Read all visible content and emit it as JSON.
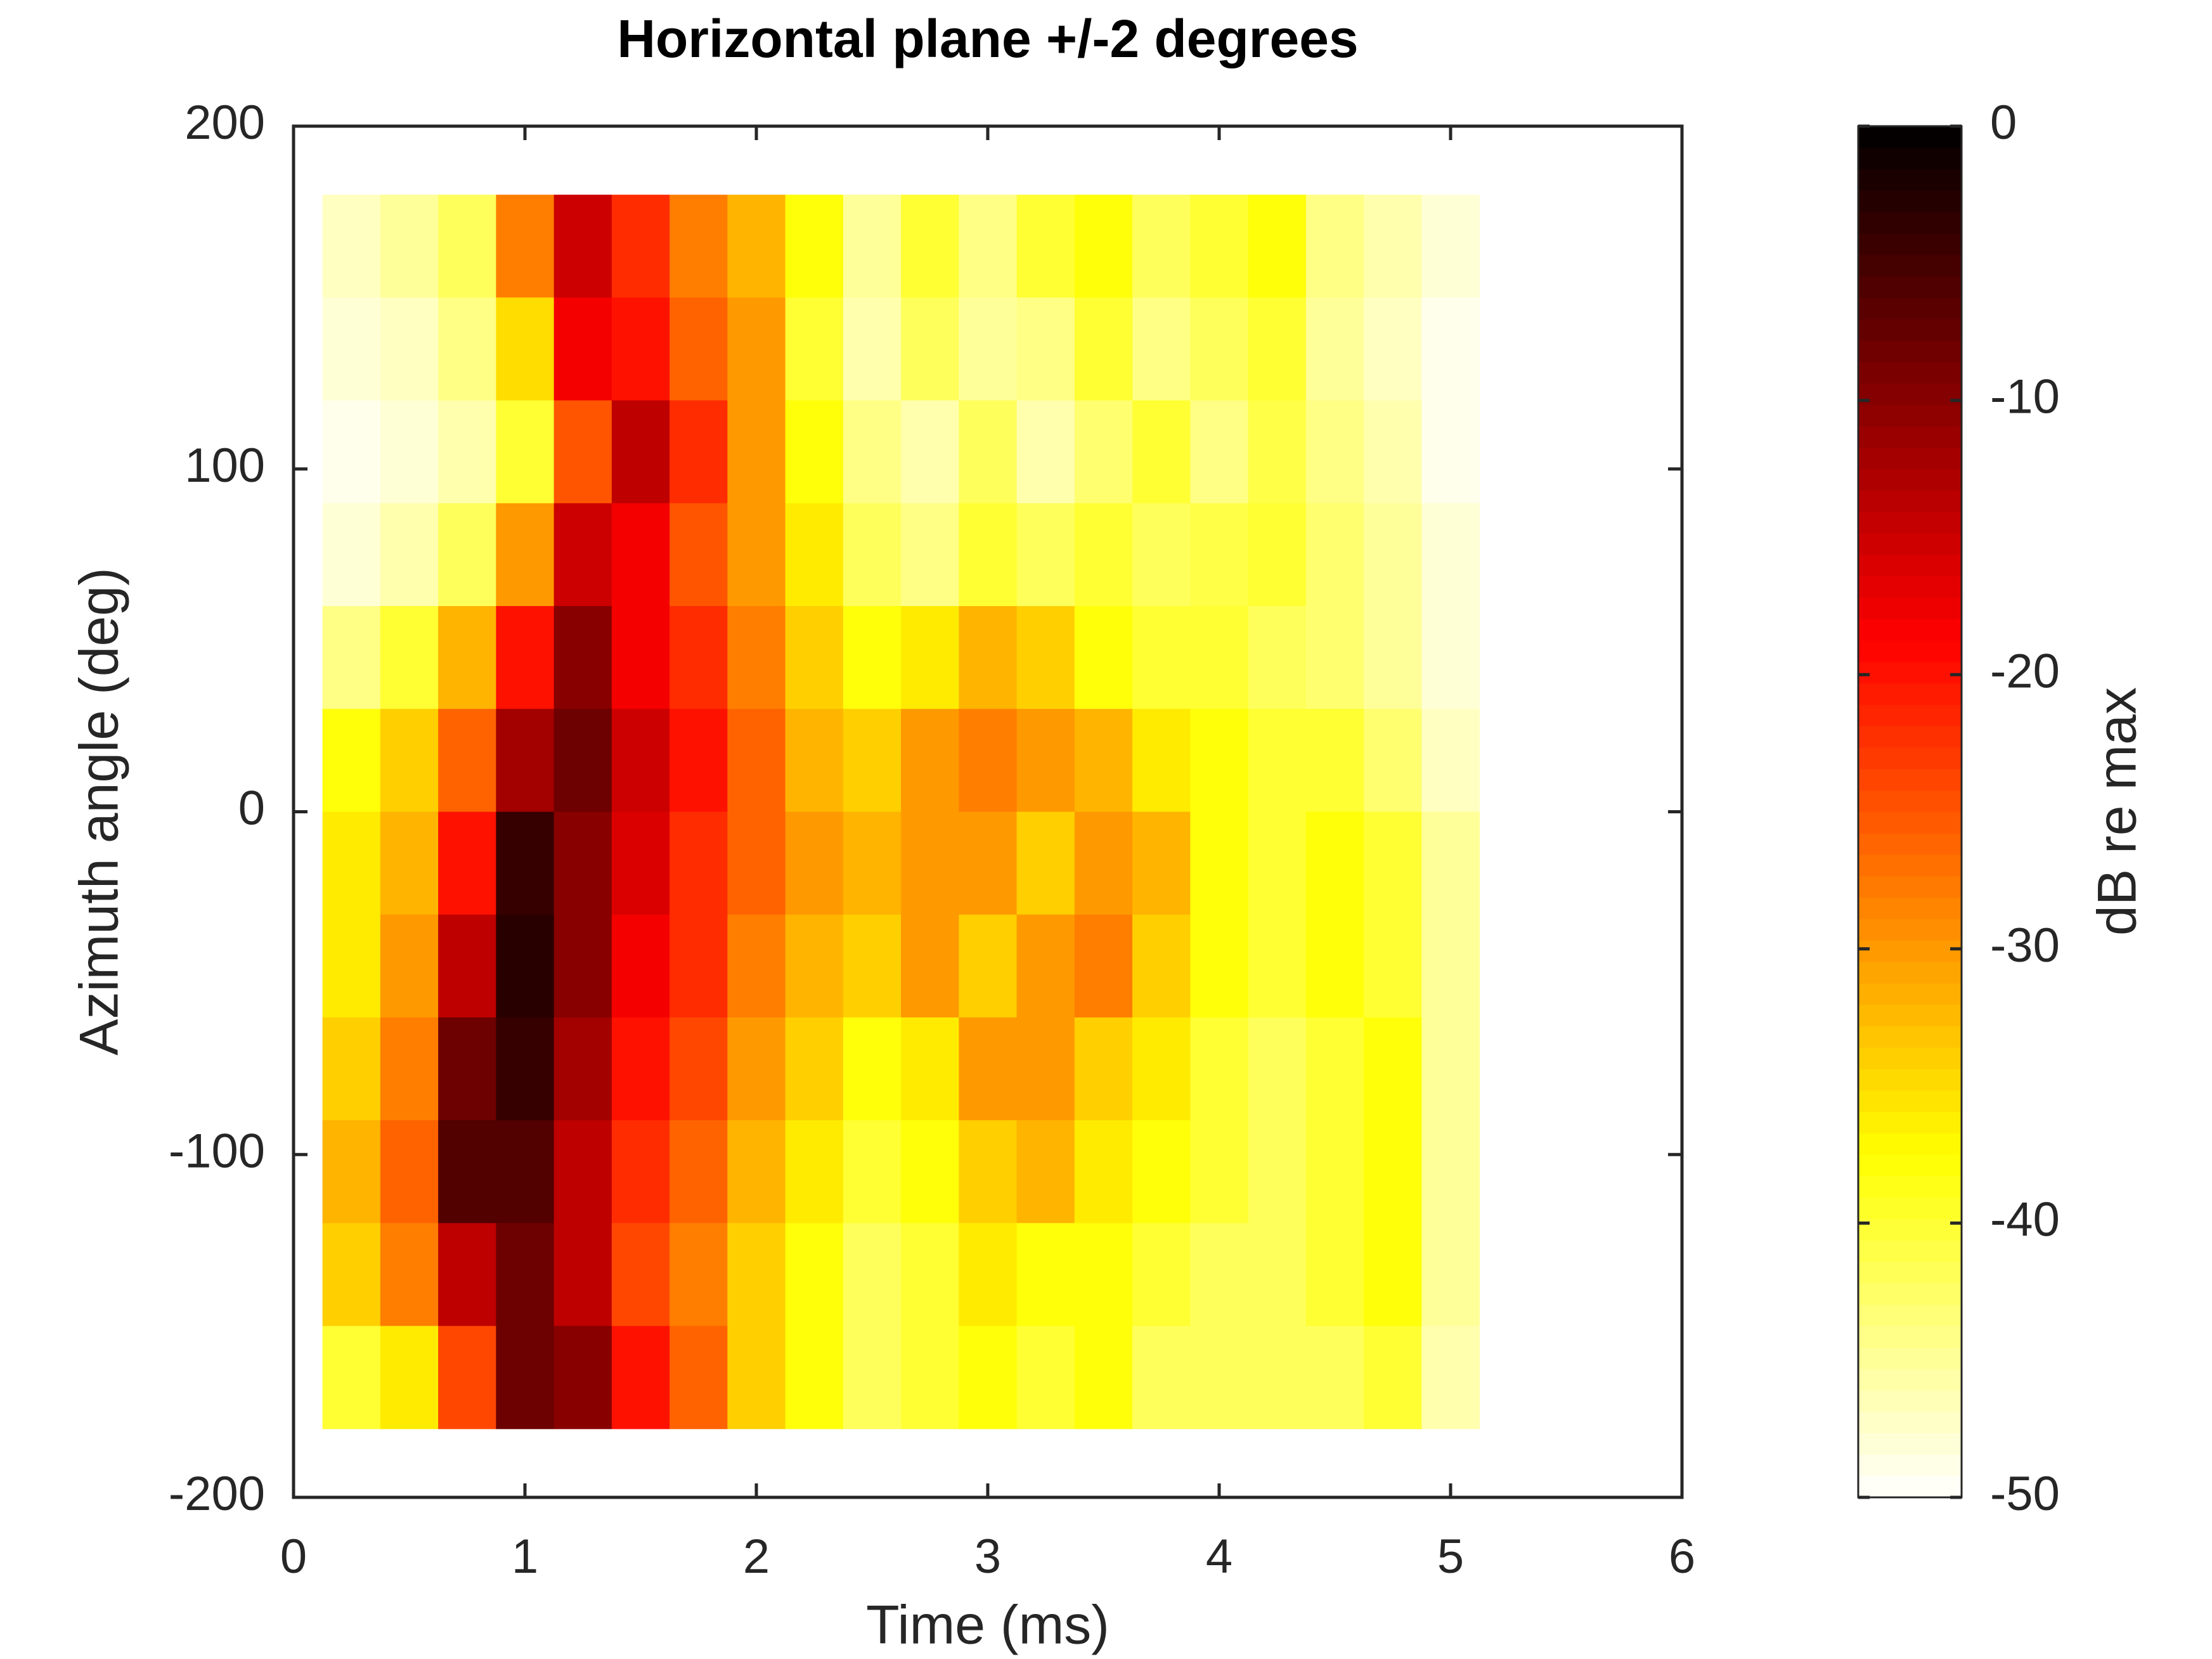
{
  "chart_data": {
    "type": "heatmap",
    "title": "Horizontal plane +/-2 degrees",
    "x_label": "Time (ms)",
    "y_label": "Azimuth angle (deg)",
    "colorbar_label": "dB re max",
    "x": [
      0.25,
      0.5,
      0.75,
      1.0,
      1.25,
      1.5,
      1.75,
      2.0,
      2.25,
      2.5,
      2.75,
      3.0,
      3.25,
      3.5,
      3.75,
      4.0,
      4.25,
      4.5,
      4.75,
      5.0
    ],
    "y": [
      165,
      135,
      105,
      75,
      45,
      15,
      -15,
      -45,
      -75,
      -105,
      -135,
      -165
    ],
    "values": [
      [
        -47,
        -45,
        -42,
        -28,
        -15,
        -22,
        -28,
        -32,
        -38,
        -45,
        -40,
        -44,
        -40,
        -38,
        -42,
        -40,
        -38,
        -44,
        -46,
        -48
      ],
      [
        -48,
        -47,
        -44,
        -35,
        -18,
        -20,
        -26,
        -30,
        -40,
        -46,
        -42,
        -45,
        -44,
        -40,
        -44,
        -42,
        -40,
        -45,
        -47,
        -49
      ],
      [
        -49,
        -48,
        -46,
        -40,
        -25,
        -14,
        -22,
        -30,
        -38,
        -44,
        -46,
        -42,
        -46,
        -43,
        -40,
        -44,
        -41,
        -44,
        -46,
        -49
      ],
      [
        -48,
        -46,
        -42,
        -30,
        -15,
        -18,
        -25,
        -30,
        -36,
        -42,
        -44,
        -40,
        -42,
        -40,
        -42,
        -41,
        -40,
        -43,
        -45,
        -48
      ],
      [
        -44,
        -40,
        -32,
        -20,
        -10,
        -18,
        -22,
        -28,
        -34,
        -38,
        -36,
        -32,
        -34,
        -38,
        -40,
        -40,
        -42,
        -43,
        -45,
        -48
      ],
      [
        -38,
        -34,
        -26,
        -12,
        -8,
        -15,
        -20,
        -26,
        -32,
        -34,
        -30,
        -28,
        -30,
        -32,
        -36,
        -38,
        -40,
        -40,
        -43,
        -47
      ],
      [
        -36,
        -32,
        -20,
        -4,
        -10,
        -16,
        -22,
        -26,
        -30,
        -32,
        -30,
        -30,
        -34,
        -30,
        -32,
        -38,
        -40,
        -38,
        -40,
        -45
      ],
      [
        -36,
        -30,
        -14,
        -3,
        -10,
        -18,
        -22,
        -28,
        -32,
        -34,
        -30,
        -34,
        -30,
        -28,
        -34,
        -38,
        -40,
        -38,
        -40,
        -45
      ],
      [
        -34,
        -28,
        -8,
        -4,
        -12,
        -20,
        -24,
        -30,
        -34,
        -38,
        -36,
        -30,
        -30,
        -34,
        -36,
        -40,
        -42,
        -40,
        -38,
        -45
      ],
      [
        -32,
        -26,
        -6,
        -6,
        -14,
        -22,
        -26,
        -32,
        -36,
        -40,
        -38,
        -34,
        -32,
        -36,
        -38,
        -40,
        -42,
        -40,
        -38,
        -45
      ],
      [
        -34,
        -28,
        -14,
        -8,
        -14,
        -24,
        -28,
        -34,
        -38,
        -42,
        -40,
        -36,
        -38,
        -38,
        -40,
        -42,
        -42,
        -40,
        -38,
        -45
      ],
      [
        -40,
        -36,
        -24,
        -8,
        -10,
        -20,
        -26,
        -34,
        -38,
        -42,
        -40,
        -38,
        -40,
        -38,
        -42,
        -42,
        -42,
        -42,
        -40,
        -46
      ]
    ],
    "colormap": "hot_r",
    "clim": [
      -50,
      0
    ],
    "cticks": [
      0,
      -10,
      -20,
      -30,
      -40,
      -50
    ],
    "xlim": [
      0,
      6
    ],
    "xticks": [
      0,
      1,
      2,
      3,
      4,
      5,
      6
    ],
    "ylim": [
      -200,
      200
    ],
    "yticks": [
      -200,
      -100,
      0,
      100,
      200
    ]
  }
}
